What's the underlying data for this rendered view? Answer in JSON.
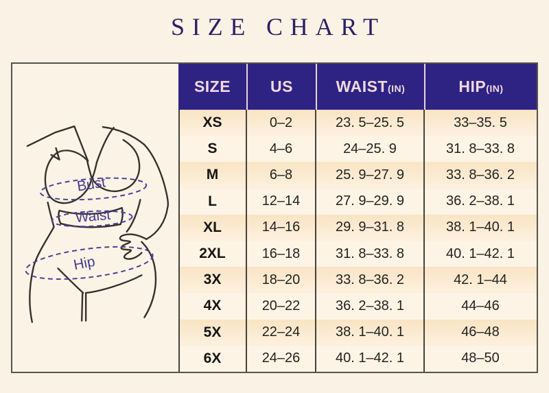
{
  "title": "SIZE CHART",
  "figure": {
    "labels": {
      "bust": "Bust",
      "waist": "Waist",
      "hip": "Hip"
    }
  },
  "table": {
    "headers": [
      {
        "label": "SIZE",
        "unit": ""
      },
      {
        "label": "US",
        "unit": ""
      },
      {
        "label": "WAIST",
        "unit": "(IN)"
      },
      {
        "label": "HIP",
        "unit": "(IN)"
      }
    ],
    "rows": [
      {
        "size": "XS",
        "us": "0–2",
        "waist": "23. 5–25. 5",
        "hip": "33–35. 5"
      },
      {
        "size": "S",
        "us": "4–6",
        "waist": "24–25. 9",
        "hip": "31. 8–33. 8"
      },
      {
        "size": "M",
        "us": "6–8",
        "waist": "25. 9–27. 9",
        "hip": "33. 8–36. 2"
      },
      {
        "size": "L",
        "us": "12–14",
        "waist": "27. 9–29. 9",
        "hip": "36. 2–38. 1"
      },
      {
        "size": "XL",
        "us": "14–16",
        "waist": "29. 9–31. 8",
        "hip": "38. 1–40. 1"
      },
      {
        "size": "2XL",
        "us": "16–18",
        "waist": "31. 8–33. 8",
        "hip": "40. 1–42. 1"
      },
      {
        "size": "3X",
        "us": "18–20",
        "waist": "33. 8–36. 2",
        "hip": "42. 1–44"
      },
      {
        "size": "4X",
        "us": "20–22",
        "waist": "36. 2–38. 1",
        "hip": "44–46"
      },
      {
        "size": "5X",
        "us": "22–24",
        "waist": "38. 1–40. 1",
        "hip": "46–48"
      },
      {
        "size": "6X",
        "us": "24–26",
        "waist": "40. 1–42. 1",
        "hip": "48–50"
      }
    ]
  },
  "colors": {
    "page_bg": "#faf2e4",
    "header_bg": "#2e2383",
    "header_text": "#efd9dd",
    "row_odd": "#f9e4c4",
    "row_even": "#fdf4e5",
    "title_text": "#292163",
    "accent_purple": "#4b3f96",
    "grid_line": "#45413a"
  },
  "chart_data": {
    "type": "table",
    "title": "SIZE CHART",
    "columns": [
      "SIZE",
      "US",
      "WAIST(IN)",
      "HIP(IN)"
    ],
    "rows": [
      [
        "XS",
        "0-2",
        "23.5-25.5",
        "33-35.5"
      ],
      [
        "S",
        "4-6",
        "24-25.9",
        "31.8-33.8"
      ],
      [
        "M",
        "6-8",
        "25.9-27.9",
        "33.8-36.2"
      ],
      [
        "L",
        "12-14",
        "27.9-29.9",
        "36.2-38.1"
      ],
      [
        "XL",
        "14-16",
        "29.9-31.8",
        "38.1-40.1"
      ],
      [
        "2XL",
        "16-18",
        "31.8-33.8",
        "40.1-42.1"
      ],
      [
        "3X",
        "18-20",
        "33.8-36.2",
        "42.1-44"
      ],
      [
        "4X",
        "20-22",
        "36.2-38.1",
        "44-46"
      ],
      [
        "5X",
        "22-24",
        "38.1-40.1",
        "46-48"
      ],
      [
        "6X",
        "24-26",
        "40.1-42.1",
        "48-50"
      ]
    ]
  }
}
